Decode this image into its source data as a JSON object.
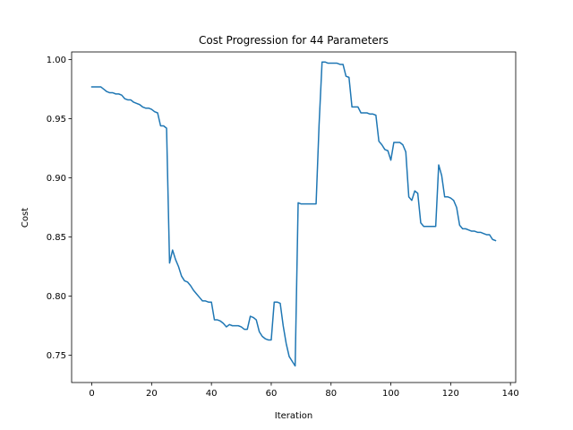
{
  "chart_data": {
    "type": "line",
    "title": "Cost Progression for 44 Parameters",
    "xlabel": "Iteration",
    "ylabel": "Cost",
    "xlim": [
      -6.75,
      141.75
    ],
    "ylim": [
      0.727,
      1.0065
    ],
    "xticks": [
      0,
      20,
      40,
      60,
      80,
      100,
      120,
      140
    ],
    "yticks": [
      0.75,
      0.8,
      0.85,
      0.9,
      0.95,
      1.0
    ],
    "ytick_labels": [
      "0.75",
      "0.80",
      "0.85",
      "0.90",
      "0.95",
      "1.00"
    ],
    "grid": false,
    "legend": "none",
    "series": [
      {
        "color": "#1f77b4",
        "x": [
          0,
          1,
          2,
          3,
          4,
          5,
          6,
          7,
          8,
          9,
          10,
          11,
          12,
          13,
          14,
          15,
          16,
          17,
          18,
          19,
          20,
          21,
          22,
          23,
          24,
          25,
          26,
          27,
          28,
          29,
          30,
          31,
          32,
          33,
          34,
          35,
          36,
          37,
          38,
          39,
          40,
          41,
          42,
          43,
          44,
          45,
          46,
          47,
          48,
          49,
          50,
          51,
          52,
          53,
          54,
          55,
          56,
          57,
          58,
          59,
          60,
          61,
          62,
          63,
          64,
          65,
          66,
          67,
          68,
          69,
          70,
          71,
          72,
          73,
          74,
          75,
          76,
          77,
          78,
          79,
          80,
          81,
          82,
          83,
          84,
          85,
          86,
          87,
          88,
          89,
          90,
          91,
          92,
          93,
          94,
          95,
          96,
          97,
          98,
          99,
          100,
          101,
          102,
          103,
          104,
          105,
          106,
          107,
          108,
          109,
          110,
          111,
          112,
          113,
          114,
          115,
          116,
          117,
          118,
          119,
          120,
          121,
          122,
          123,
          124,
          125,
          126,
          127,
          128,
          129,
          130,
          131,
          132,
          133,
          134,
          135
        ],
        "y": [
          0.977,
          0.977,
          0.977,
          0.977,
          0.975,
          0.973,
          0.972,
          0.972,
          0.971,
          0.971,
          0.97,
          0.967,
          0.966,
          0.966,
          0.964,
          0.963,
          0.962,
          0.96,
          0.959,
          0.959,
          0.958,
          0.956,
          0.955,
          0.944,
          0.944,
          0.942,
          0.828,
          0.839,
          0.831,
          0.825,
          0.817,
          0.813,
          0.812,
          0.809,
          0.805,
          0.802,
          0.799,
          0.796,
          0.796,
          0.795,
          0.795,
          0.78,
          0.78,
          0.779,
          0.777,
          0.774,
          0.776,
          0.775,
          0.775,
          0.775,
          0.774,
          0.772,
          0.772,
          0.783,
          0.782,
          0.78,
          0.77,
          0.766,
          0.764,
          0.763,
          0.763,
          0.795,
          0.795,
          0.794,
          0.775,
          0.76,
          0.749,
          0.745,
          0.741,
          0.879,
          0.878,
          0.878,
          0.878,
          0.878,
          0.878,
          0.878,
          0.945,
          0.998,
          0.998,
          0.997,
          0.997,
          0.997,
          0.997,
          0.996,
          0.996,
          0.986,
          0.985,
          0.96,
          0.96,
          0.96,
          0.955,
          0.955,
          0.955,
          0.954,
          0.954,
          0.953,
          0.931,
          0.928,
          0.924,
          0.923,
          0.915,
          0.93,
          0.93,
          0.93,
          0.928,
          0.922,
          0.884,
          0.881,
          0.889,
          0.887,
          0.862,
          0.859,
          0.859,
          0.859,
          0.859,
          0.859,
          0.911,
          0.902,
          0.884,
          0.884,
          0.883,
          0.881,
          0.875,
          0.86,
          0.857,
          0.857,
          0.856,
          0.855,
          0.855,
          0.854,
          0.854,
          0.853,
          0.852,
          0.852,
          0.848,
          0.847
        ]
      }
    ]
  }
}
